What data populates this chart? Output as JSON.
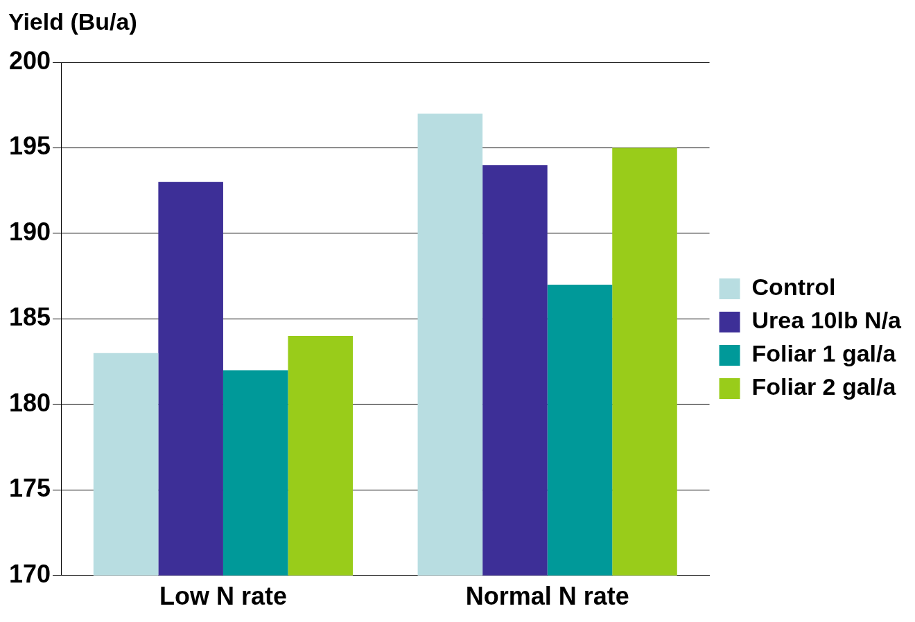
{
  "chart_data": {
    "type": "bar",
    "ylabel": "Yield (Bu/a)",
    "categories": [
      "Low N rate",
      "Normal N rate"
    ],
    "series": [
      {
        "name": "Control",
        "color": "#b8dde1",
        "values": [
          183,
          197
        ]
      },
      {
        "name": "Urea 10lb N/a",
        "color": "#3d2f97",
        "values": [
          193,
          194
        ]
      },
      {
        "name": "Foliar 1 gal/a",
        "color": "#009999",
        "values": [
          182,
          187
        ]
      },
      {
        "name": "Foliar 2 gal/a",
        "color": "#99cc1a",
        "values": [
          184,
          195
        ]
      }
    ],
    "ylim": [
      170,
      200
    ],
    "yticks": [
      170,
      175,
      180,
      185,
      190,
      195,
      200
    ],
    "grid": "y",
    "legend": "right"
  }
}
